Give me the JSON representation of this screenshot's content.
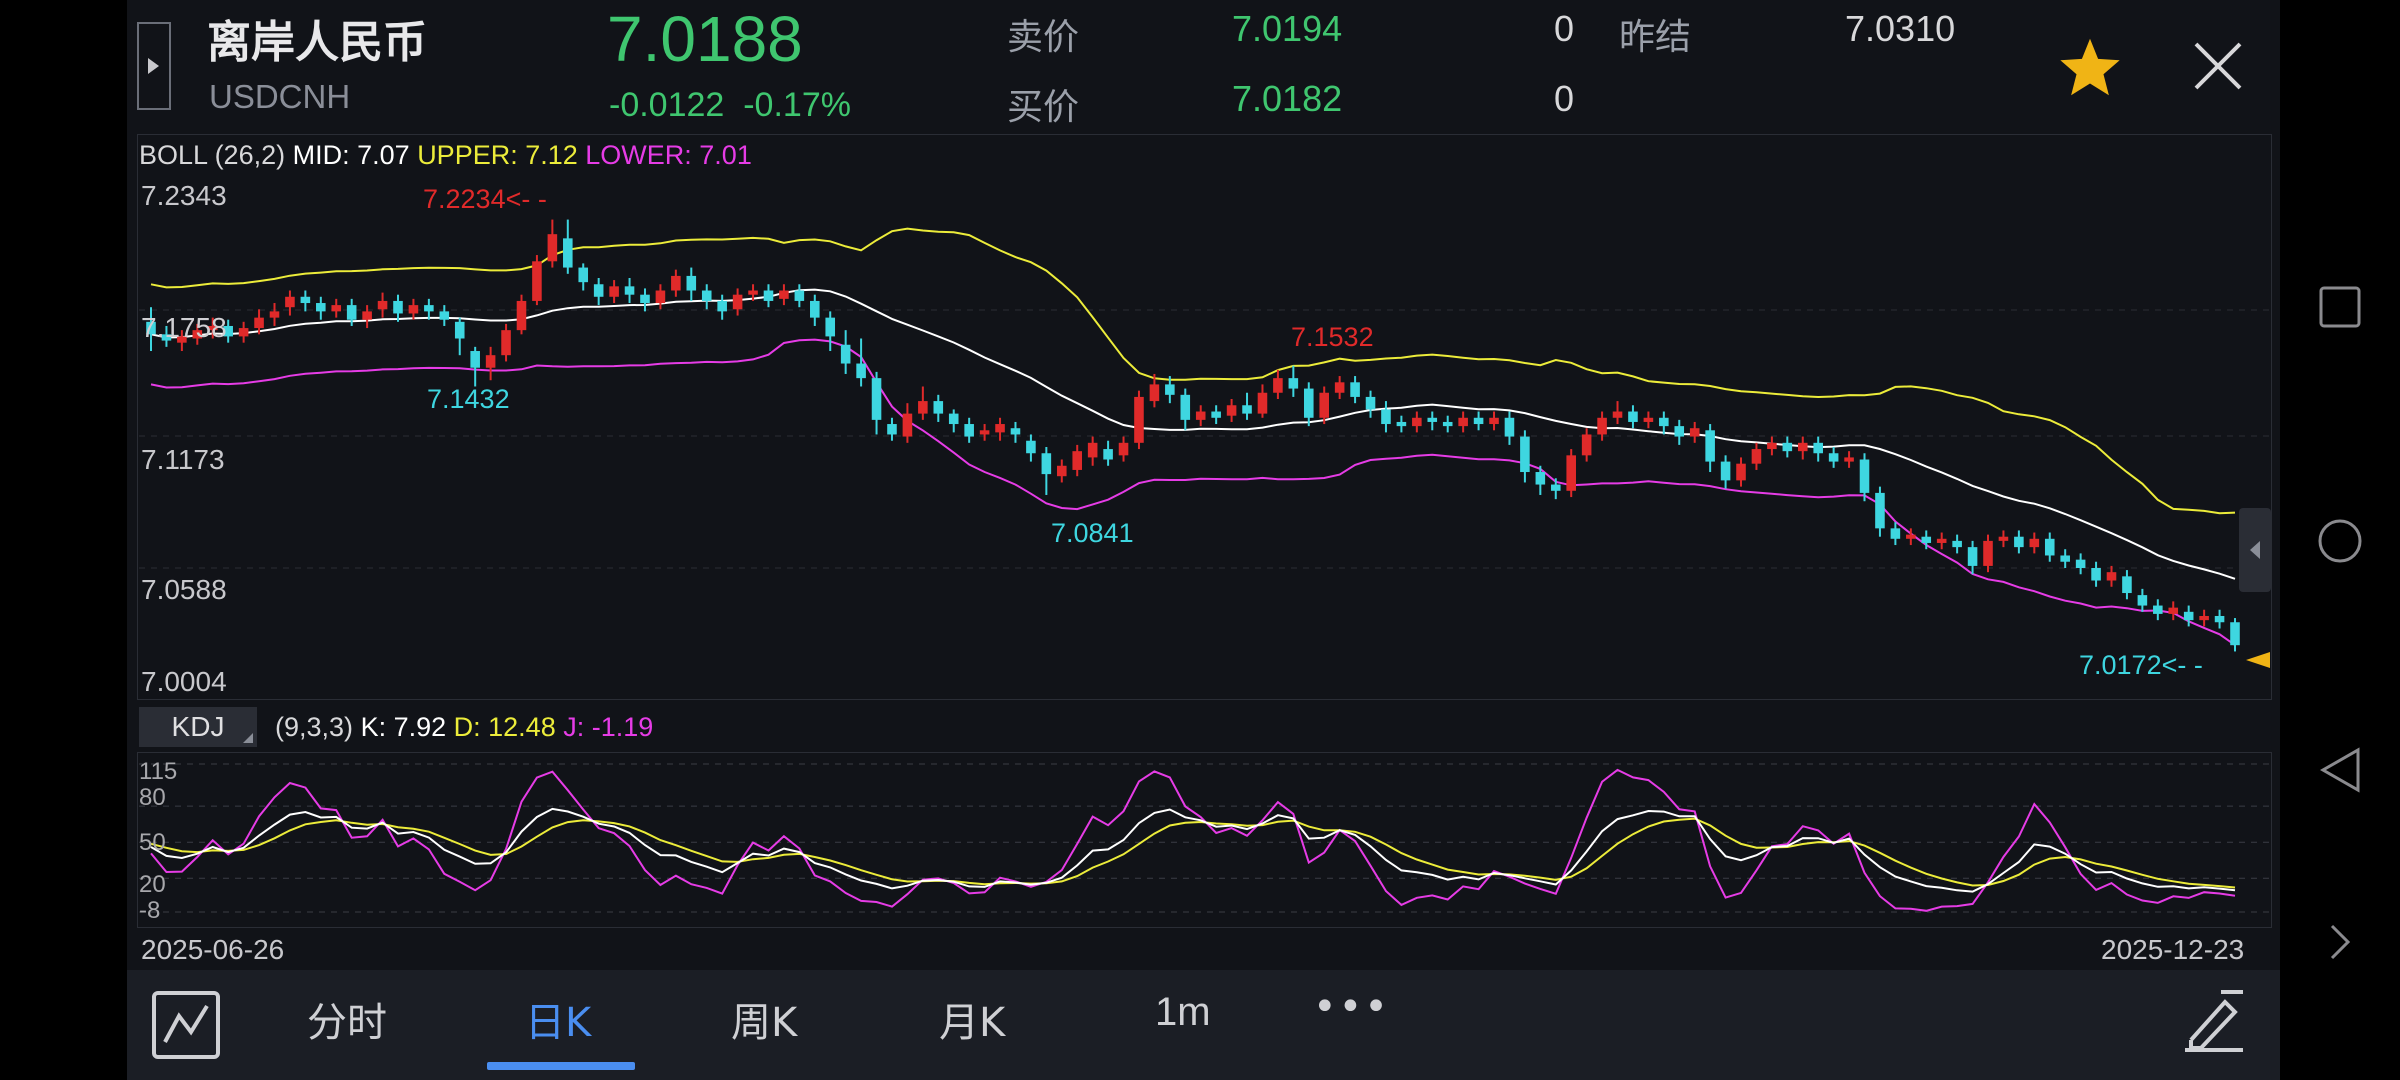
{
  "header": {
    "name": "离岸人民币",
    "code": "USDCNH",
    "price": "7.0188",
    "change": "-0.0122",
    "change_pct": "-0.17%",
    "sell_label": "卖价",
    "sell_price": "7.0194",
    "sell_vol": "0",
    "buy_label": "买价",
    "buy_price": "7.0182",
    "buy_vol": "0",
    "prev_settle_label": "昨结",
    "prev_settle": "7.0310"
  },
  "main_chart": {
    "indicator": "BOLL",
    "params": "(26,2)",
    "mid": "MID: 7.07",
    "upper": "UPPER: 7.12",
    "lower": "LOWER: 7.01",
    "price_labels": [
      "7.2343",
      "7.1173",
      "7.0588",
      "7.0004"
    ],
    "hidden_label": "7.1758",
    "annotations": {
      "high": "7.2234<- -",
      "low1": "7.1432",
      "low2": "7.0841",
      "peak2": "7.1532",
      "last": "7.0172<- -"
    }
  },
  "kdj": {
    "button": "KDJ",
    "params": "(9,3,3)",
    "k": "K: 7.92",
    "d": "D: 12.48",
    "j": "J: -1.19",
    "levels": [
      "115",
      "80",
      "50",
      "20",
      "-8"
    ]
  },
  "dates": {
    "start": "2025-06-26",
    "end": "2025-12-23"
  },
  "tabs": [
    {
      "label": "分时",
      "active": false
    },
    {
      "label": "日K",
      "active": true
    },
    {
      "label": "周K",
      "active": false
    },
    {
      "label": "月K",
      "active": false
    },
    {
      "label": "1m",
      "active": false
    },
    {
      "label": "•••",
      "active": false
    }
  ],
  "icons": {
    "favorite": "star-icon",
    "close": "close-icon",
    "chart_type": "line-chart-icon",
    "draw": "pen-icon",
    "expand": "sidebar-toggle-icon"
  },
  "colors": {
    "up": "#e02a2a",
    "down": "#3ed6e0",
    "mid": "#ffffff",
    "upper": "#ecec3a",
    "lower": "#e63ce6",
    "accent": "#4a8ef0",
    "price_green": "#3fc66f"
  },
  "chart_data": {
    "type": "candlestick",
    "ylim": [
      7.0004,
      7.2343
    ],
    "candles": [
      [
        7.174,
        7.168,
        7.181,
        7.16
      ],
      [
        7.168,
        7.165,
        7.172,
        7.162
      ],
      [
        7.164,
        7.167,
        7.17,
        7.16
      ],
      [
        7.166,
        7.17,
        7.173,
        7.163
      ],
      [
        7.17,
        7.172,
        7.176,
        7.166
      ],
      [
        7.172,
        7.167,
        7.175,
        7.164
      ],
      [
        7.167,
        7.171,
        7.174,
        7.164
      ],
      [
        7.171,
        7.176,
        7.18,
        7.168
      ],
      [
        7.176,
        7.179,
        7.183,
        7.172
      ],
      [
        7.181,
        7.186,
        7.189,
        7.177
      ],
      [
        7.186,
        7.183,
        7.189,
        7.179
      ],
      [
        7.183,
        7.179,
        7.186,
        7.175
      ],
      [
        7.179,
        7.182,
        7.185,
        7.176
      ],
      [
        7.182,
        7.175,
        7.185,
        7.172
      ],
      [
        7.175,
        7.179,
        7.182,
        7.171
      ],
      [
        7.18,
        7.184,
        7.188,
        7.176
      ],
      [
        7.184,
        7.178,
        7.187,
        7.174
      ],
      [
        7.178,
        7.182,
        7.185,
        7.175
      ],
      [
        7.182,
        7.179,
        7.185,
        7.175
      ],
      [
        7.179,
        7.175,
        7.182,
        7.172
      ],
      [
        7.174,
        7.166,
        7.176,
        7.158
      ],
      [
        7.16,
        7.152,
        7.162,
        7.143
      ],
      [
        7.152,
        7.158,
        7.162,
        7.146
      ],
      [
        7.158,
        7.17,
        7.173,
        7.155
      ],
      [
        7.17,
        7.184,
        7.187,
        7.168
      ],
      [
        7.184,
        7.203,
        7.206,
        7.182
      ],
      [
        7.203,
        7.216,
        7.223,
        7.2
      ],
      [
        7.214,
        7.2,
        7.223,
        7.197
      ],
      [
        7.2,
        7.193,
        7.202,
        7.189
      ],
      [
        7.192,
        7.186,
        7.195,
        7.182
      ],
      [
        7.186,
        7.191,
        7.194,
        7.183
      ],
      [
        7.191,
        7.187,
        7.195,
        7.183
      ],
      [
        7.187,
        7.183,
        7.19,
        7.179
      ],
      [
        7.183,
        7.189,
        7.192,
        7.18
      ],
      [
        7.189,
        7.196,
        7.199,
        7.186
      ],
      [
        7.196,
        7.189,
        7.2,
        7.184
      ],
      [
        7.189,
        7.184,
        7.192,
        7.18
      ],
      [
        7.184,
        7.179,
        7.187,
        7.175
      ],
      [
        7.18,
        7.187,
        7.19,
        7.177
      ],
      [
        7.187,
        7.189,
        7.192,
        7.184
      ],
      [
        7.189,
        7.184,
        7.192,
        7.181
      ],
      [
        7.185,
        7.189,
        7.192,
        7.182
      ],
      [
        7.189,
        7.184,
        7.192,
        7.181
      ],
      [
        7.184,
        7.176,
        7.187,
        7.172
      ],
      [
        7.176,
        7.167,
        7.179,
        7.16
      ],
      [
        7.163,
        7.154,
        7.17,
        7.149
      ],
      [
        7.154,
        7.147,
        7.166,
        7.143
      ],
      [
        7.147,
        7.127,
        7.15,
        7.12
      ],
      [
        7.125,
        7.12,
        7.128,
        7.117
      ],
      [
        7.119,
        7.13,
        7.135,
        7.116
      ],
      [
        7.13,
        7.136,
        7.143,
        7.127
      ],
      [
        7.136,
        7.13,
        7.139,
        7.126
      ],
      [
        7.13,
        7.125,
        7.132,
        7.121
      ],
      [
        7.125,
        7.119,
        7.128,
        7.116
      ],
      [
        7.12,
        7.122,
        7.125,
        7.117
      ],
      [
        7.121,
        7.125,
        7.128,
        7.117
      ],
      [
        7.123,
        7.12,
        7.126,
        7.116
      ],
      [
        7.117,
        7.111,
        7.12,
        7.107
      ],
      [
        7.111,
        7.101,
        7.114,
        7.091
      ],
      [
        7.1,
        7.105,
        7.108,
        7.097
      ],
      [
        7.103,
        7.112,
        7.115,
        7.1
      ],
      [
        7.109,
        7.116,
        7.119,
        7.105
      ],
      [
        7.113,
        7.108,
        7.117,
        7.105
      ],
      [
        7.11,
        7.116,
        7.119,
        7.107
      ],
      [
        7.116,
        7.138,
        7.141,
        7.113
      ],
      [
        7.136,
        7.144,
        7.149,
        7.133
      ],
      [
        7.144,
        7.139,
        7.148,
        7.135
      ],
      [
        7.139,
        7.127,
        7.142,
        7.122
      ],
      [
        7.127,
        7.131,
        7.134,
        7.124
      ],
      [
        7.131,
        7.128,
        7.134,
        7.125
      ],
      [
        7.129,
        7.134,
        7.137,
        7.126
      ],
      [
        7.134,
        7.13,
        7.14,
        7.127
      ],
      [
        7.13,
        7.14,
        7.144,
        7.128
      ],
      [
        7.14,
        7.147,
        7.151,
        7.137
      ],
      [
        7.147,
        7.142,
        7.153,
        7.138
      ],
      [
        7.142,
        7.128,
        7.145,
        7.124
      ],
      [
        7.128,
        7.14,
        7.143,
        7.125
      ],
      [
        7.14,
        7.145,
        7.148,
        7.137
      ],
      [
        7.145,
        7.138,
        7.148,
        7.135
      ],
      [
        7.138,
        7.132,
        7.141,
        7.128
      ],
      [
        7.132,
        7.125,
        7.136,
        7.121
      ],
      [
        7.126,
        7.124,
        7.129,
        7.121
      ],
      [
        7.124,
        7.128,
        7.131,
        7.121
      ],
      [
        7.128,
        7.126,
        7.131,
        7.122
      ],
      [
        7.126,
        7.124,
        7.129,
        7.121
      ],
      [
        7.124,
        7.128,
        7.131,
        7.121
      ],
      [
        7.128,
        7.125,
        7.131,
        7.122
      ],
      [
        7.125,
        7.128,
        7.131,
        7.122
      ],
      [
        7.128,
        7.119,
        7.131,
        7.115
      ],
      [
        7.119,
        7.102,
        7.122,
        7.097
      ],
      [
        7.102,
        7.096,
        7.105,
        7.091
      ],
      [
        7.096,
        7.093,
        7.099,
        7.089
      ],
      [
        7.093,
        7.11,
        7.113,
        7.09
      ],
      [
        7.11,
        7.12,
        7.123,
        7.107
      ],
      [
        7.12,
        7.128,
        7.131,
        7.117
      ],
      [
        7.128,
        7.131,
        7.136,
        7.125
      ],
      [
        7.131,
        7.126,
        7.134,
        7.123
      ],
      [
        7.126,
        7.128,
        7.131,
        7.123
      ],
      [
        7.128,
        7.124,
        7.131,
        7.12
      ],
      [
        7.124,
        7.119,
        7.127,
        7.115
      ],
      [
        7.119,
        7.123,
        7.126,
        7.116
      ],
      [
        7.122,
        7.107,
        7.125,
        7.102
      ],
      [
        7.107,
        7.098,
        7.11,
        7.094
      ],
      [
        7.098,
        7.106,
        7.109,
        7.095
      ],
      [
        7.106,
        7.113,
        7.116,
        7.103
      ],
      [
        7.113,
        7.116,
        7.119,
        7.11
      ],
      [
        7.116,
        7.112,
        7.119,
        7.109
      ],
      [
        7.112,
        7.116,
        7.119,
        7.108
      ],
      [
        7.116,
        7.111,
        7.119,
        7.107
      ],
      [
        7.111,
        7.107,
        7.114,
        7.104
      ],
      [
        7.107,
        7.109,
        7.112,
        7.104
      ],
      [
        7.108,
        7.092,
        7.111,
        7.088
      ],
      [
        7.092,
        7.075,
        7.095,
        7.071
      ],
      [
        7.075,
        7.07,
        7.078,
        7.067
      ],
      [
        7.07,
        7.072,
        7.075,
        7.067
      ],
      [
        7.071,
        7.068,
        7.074,
        7.065
      ],
      [
        7.068,
        7.07,
        7.073,
        7.065
      ],
      [
        7.069,
        7.066,
        7.072,
        7.063
      ],
      [
        7.066,
        7.057,
        7.069,
        7.053
      ],
      [
        7.057,
        7.069,
        7.072,
        7.054
      ],
      [
        7.069,
        7.071,
        7.074,
        7.066
      ],
      [
        7.071,
        7.066,
        7.074,
        7.063
      ],
      [
        7.066,
        7.07,
        7.073,
        7.063
      ],
      [
        7.07,
        7.062,
        7.073,
        7.059
      ],
      [
        7.062,
        7.059,
        7.065,
        7.056
      ],
      [
        7.06,
        7.056,
        7.063,
        7.053
      ],
      [
        7.056,
        7.05,
        7.059,
        7.047
      ],
      [
        7.05,
        7.054,
        7.057,
        7.047
      ],
      [
        7.052,
        7.044,
        7.055,
        7.041
      ],
      [
        7.043,
        7.038,
        7.046,
        7.035
      ],
      [
        7.038,
        7.034,
        7.041,
        7.031
      ],
      [
        7.034,
        7.037,
        7.04,
        7.031
      ],
      [
        7.035,
        7.031,
        7.038,
        7.028
      ],
      [
        7.031,
        7.033,
        7.036,
        7.028
      ],
      [
        7.033,
        7.03,
        7.036,
        7.027
      ],
      [
        7.03,
        7.019,
        7.032,
        7.016
      ]
    ]
  }
}
